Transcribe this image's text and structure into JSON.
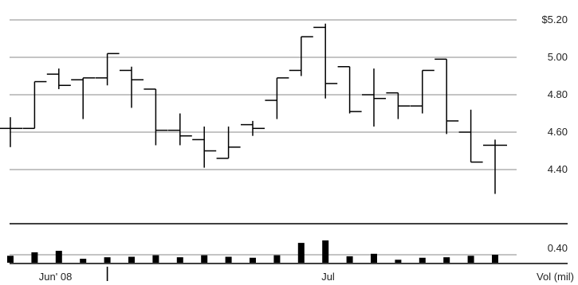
{
  "chart_data": {
    "type": "ohlc",
    "price_axis": {
      "ticks": [
        "$5.20",
        "5.00",
        "4.80",
        "4.60",
        "4.40"
      ],
      "tick_values": [
        5.2,
        5.0,
        4.8,
        4.6,
        4.4
      ],
      "range": [
        4.28,
        5.24
      ]
    },
    "volume_axis": {
      "tick_label": "0.40",
      "tick_value": 0.4,
      "label": "Vol (mil)",
      "range": [
        0,
        0.55
      ]
    },
    "x_labels": [
      {
        "text": "Jun' 08",
        "index": 2
      },
      {
        "text": "Jul",
        "index": 13
      }
    ],
    "month_divider_index": 4,
    "bars": [
      {
        "open": 4.62,
        "high": 4.68,
        "low": 4.52,
        "close": 4.62,
        "volume": 0.14
      },
      {
        "open": 4.62,
        "high": 4.87,
        "low": 4.62,
        "close": 4.87,
        "volume": 0.21
      },
      {
        "open": 4.91,
        "high": 4.94,
        "low": 4.83,
        "close": 4.85,
        "volume": 0.24
      },
      {
        "open": 4.88,
        "high": 4.89,
        "low": 4.67,
        "close": 4.89,
        "volume": 0.08
      },
      {
        "open": 4.89,
        "high": 5.02,
        "low": 4.85,
        "close": 5.02,
        "volume": 0.11
      },
      {
        "open": 4.93,
        "high": 4.95,
        "low": 4.73,
        "close": 4.88,
        "volume": 0.12
      },
      {
        "open": 4.83,
        "high": 4.83,
        "low": 4.53,
        "close": 4.61,
        "volume": 0.15
      },
      {
        "open": 4.61,
        "high": 4.7,
        "low": 4.53,
        "close": 4.58,
        "volume": 0.11
      },
      {
        "open": 4.56,
        "high": 4.63,
        "low": 4.41,
        "close": 4.5,
        "volume": 0.15
      },
      {
        "open": 4.46,
        "high": 4.63,
        "low": 4.46,
        "close": 4.52,
        "volume": 0.12
      },
      {
        "open": 4.64,
        "high": 4.66,
        "low": 4.58,
        "close": 4.62,
        "volume": 0.1
      },
      {
        "open": 4.77,
        "high": 4.89,
        "low": 4.67,
        "close": 4.89,
        "volume": 0.15
      },
      {
        "open": 4.93,
        "high": 5.11,
        "low": 4.9,
        "close": 5.11,
        "volume": 0.4
      },
      {
        "open": 5.16,
        "high": 5.18,
        "low": 4.78,
        "close": 4.86,
        "volume": 0.45
      },
      {
        "open": 4.95,
        "high": 4.95,
        "low": 4.7,
        "close": 4.71,
        "volume": 0.13
      },
      {
        "open": 4.8,
        "high": 4.94,
        "low": 4.63,
        "close": 4.78,
        "volume": 0.18
      },
      {
        "open": 4.81,
        "high": 4.81,
        "low": 4.67,
        "close": 4.74,
        "volume": 0.06
      },
      {
        "open": 4.74,
        "high": 4.93,
        "low": 4.7,
        "close": 4.93,
        "volume": 0.1
      },
      {
        "open": 4.99,
        "high": 4.99,
        "low": 4.59,
        "close": 4.66,
        "volume": 0.11
      },
      {
        "open": 4.6,
        "high": 4.72,
        "low": 4.44,
        "close": 4.44,
        "volume": 0.14
      },
      {
        "open": 4.53,
        "high": 4.56,
        "low": 4.27,
        "close": 4.53,
        "volume": 0.16
      }
    ]
  }
}
